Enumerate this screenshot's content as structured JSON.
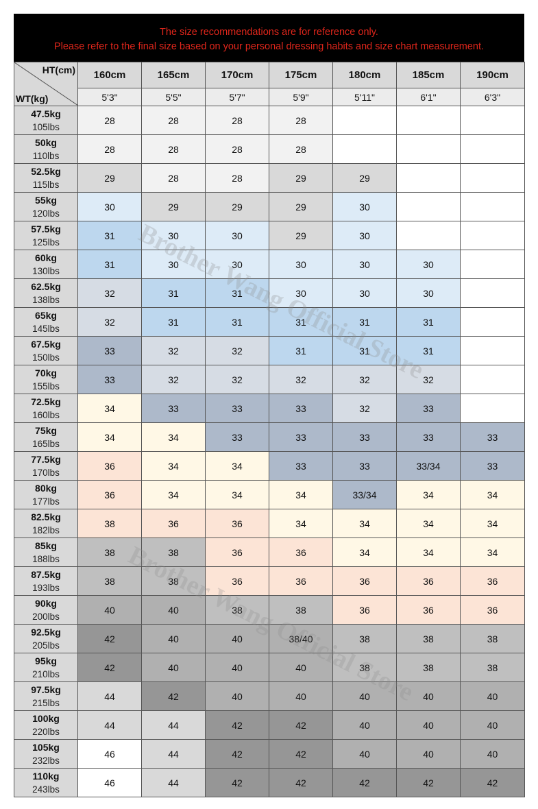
{
  "notice": [
    "The size recommendations are for reference only.",
    "Please refer to the final size based on your personal dressing habits and size chart measurement."
  ],
  "table": {
    "height_label": "HT(cm)",
    "weight_label": "WT(kg)",
    "heights_cm": [
      "160cm",
      "165cm",
      "170cm",
      "175cm",
      "180cm",
      "185cm",
      "190cm"
    ],
    "heights_ft": [
      "5'3\"",
      "5'5\"",
      "5'7\"",
      "5'9\"",
      "5'11\"",
      "6'1\"",
      "6'3\""
    ],
    "rows": [
      {
        "kg": "47.5kg",
        "lbs": "105lbs",
        "sizes": [
          "28",
          "28",
          "28",
          "28",
          null,
          null,
          null
        ]
      },
      {
        "kg": "50kg",
        "lbs": "110lbs",
        "sizes": [
          "28",
          "28",
          "28",
          "28",
          null,
          null,
          null
        ]
      },
      {
        "kg": "52.5kg",
        "lbs": "115lbs",
        "sizes": [
          "29",
          "28",
          "28",
          "29",
          "29",
          null,
          null
        ]
      },
      {
        "kg": "55kg",
        "lbs": "120lbs",
        "sizes": [
          "30",
          "29",
          "29",
          "29",
          "30",
          null,
          null
        ]
      },
      {
        "kg": "57.5kg",
        "lbs": "125lbs",
        "sizes": [
          "31",
          "30",
          "30",
          "29",
          "30",
          null,
          null
        ]
      },
      {
        "kg": "60kg",
        "lbs": "130lbs",
        "sizes": [
          "31",
          "30",
          "30",
          "30",
          "30",
          "30",
          null
        ]
      },
      {
        "kg": "62.5kg",
        "lbs": "138lbs",
        "sizes": [
          "32",
          "31",
          "31",
          "30",
          "30",
          "30",
          null
        ]
      },
      {
        "kg": "65kg",
        "lbs": "145lbs",
        "sizes": [
          "32",
          "31",
          "31",
          "31",
          "31",
          "31",
          null
        ]
      },
      {
        "kg": "67.5kg",
        "lbs": "150lbs",
        "sizes": [
          "33",
          "32",
          "32",
          "31",
          "31",
          "31",
          null
        ]
      },
      {
        "kg": "70kg",
        "lbs": "155lbs",
        "sizes": [
          "33",
          "32",
          "32",
          "32",
          "32",
          "32",
          null
        ]
      },
      {
        "kg": "72.5kg",
        "lbs": "160lbs",
        "sizes": [
          "34",
          "33",
          "33",
          "33",
          "32",
          "33",
          null
        ]
      },
      {
        "kg": "75kg",
        "lbs": "165lbs",
        "sizes": [
          "34",
          "34",
          "33",
          "33",
          "33",
          "33",
          "33"
        ]
      },
      {
        "kg": "77.5kg",
        "lbs": "170lbs",
        "sizes": [
          "36",
          "34",
          "34",
          "33",
          "33",
          "33/34",
          "33"
        ]
      },
      {
        "kg": "80kg",
        "lbs": "177lbs",
        "sizes": [
          "36",
          "34",
          "34",
          "34",
          "33/34",
          "34",
          "34"
        ]
      },
      {
        "kg": "82.5kg",
        "lbs": "182lbs",
        "sizes": [
          "38",
          "36",
          "36",
          "34",
          "34",
          "34",
          "34"
        ]
      },
      {
        "kg": "85kg",
        "lbs": "188lbs",
        "sizes": [
          "38",
          "38",
          "36",
          "36",
          "34",
          "34",
          "34"
        ]
      },
      {
        "kg": "87.5kg",
        "lbs": "193lbs",
        "sizes": [
          "38",
          "38",
          "36",
          "36",
          "36",
          "36",
          "36"
        ]
      },
      {
        "kg": "90kg",
        "lbs": "200lbs",
        "sizes": [
          "40",
          "40",
          "38",
          "38",
          "36",
          "36",
          "36"
        ]
      },
      {
        "kg": "92.5kg",
        "lbs": "205lbs",
        "sizes": [
          "42",
          "40",
          "40",
          "38/40",
          "38",
          "38",
          "38"
        ]
      },
      {
        "kg": "95kg",
        "lbs": "210lbs",
        "sizes": [
          "42",
          "40",
          "40",
          "40",
          "38",
          "38",
          "38"
        ]
      },
      {
        "kg": "97.5kg",
        "lbs": "215lbs",
        "sizes": [
          "44",
          "42",
          "40",
          "40",
          "40",
          "40",
          "40"
        ]
      },
      {
        "kg": "100kg",
        "lbs": "220lbs",
        "sizes": [
          "44",
          "44",
          "42",
          "42",
          "40",
          "40",
          "40"
        ]
      },
      {
        "kg": "105kg",
        "lbs": "232lbs",
        "sizes": [
          "46",
          "44",
          "42",
          "42",
          "40",
          "40",
          "40"
        ]
      },
      {
        "kg": "110kg",
        "lbs": "243lbs",
        "sizes": [
          "46",
          "44",
          "42",
          "42",
          "42",
          "42",
          "42"
        ]
      }
    ]
  },
  "watermarks": [
    "Brother Wang Official Store",
    "Brother Wang Official Store"
  ]
}
